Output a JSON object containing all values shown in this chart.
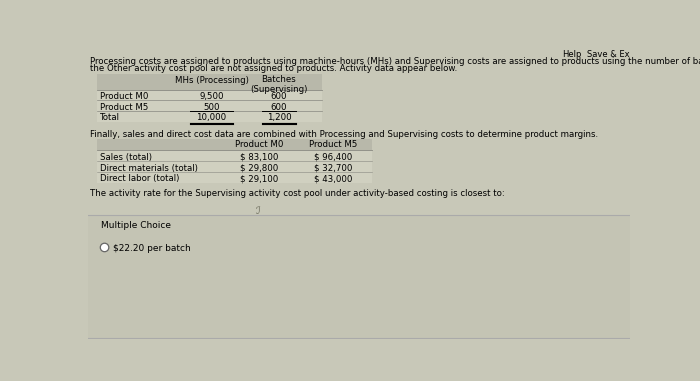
{
  "bg_color": "#c8c8b8",
  "table_header_bg": "#b8b8aa",
  "table_body_bg": "#d0d0c0",
  "mc_section_bg": "#c4c4b4",
  "top_text_line1": "Processing costs are assigned to products using machine-hours (MHs) and Supervising costs are assigned to products using the number of batches. The costs in",
  "top_text_line2": "the Other activity cost pool are not assigned to products. Activity data appear below.",
  "table1_col_labels": [
    "MHs (Processing)",
    "Batches\n(Supervising)"
  ],
  "table1_rows": [
    [
      "Product M0",
      "9,500",
      "600"
    ],
    [
      "Product M5",
      "500",
      "600"
    ],
    [
      "Total",
      "10,000",
      "1,200"
    ]
  ],
  "between_text": "Finally, sales and direct cost data are combined with Processing and Supervising costs to determine product margins.",
  "table2_col_labels": [
    "Product M0",
    "Product M5"
  ],
  "table2_rows": [
    [
      "Sales (total)",
      "$ 83,100",
      "$ 96,400"
    ],
    [
      "Direct materials (total)",
      "$ 29,800",
      "$ 32,700"
    ],
    [
      "Direct labor (total)",
      "$ 29,100",
      "$ 43,000"
    ]
  ],
  "question_text": "The activity rate for the Supervising activity cost pool under activity-based costing is closest to:",
  "mc_label": "Multiple Choice",
  "answer_text": "$22.20 per batch",
  "help_text": "Help",
  "save_text": "Save & Ex",
  "fs_body": 6.2,
  "fs_table": 6.2,
  "fs_mc": 6.5,
  "fs_answer": 6.5
}
